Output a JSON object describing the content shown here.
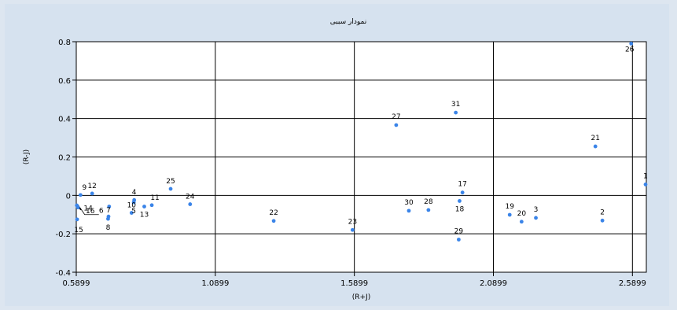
{
  "chart_data": {
    "type": "scatter",
    "title": "نمودار سببی",
    "xlabel": "(R+J)",
    "ylabel": "(R-J)",
    "xlim": [
      0.5899,
      2.6399
    ],
    "ylim": [
      -0.4,
      0.8
    ],
    "xticks": [
      0.5899,
      1.0899,
      1.5899,
      2.0899,
      2.5899
    ],
    "xtick_labels": [
      "0.5899",
      "1.0899",
      "1.5899",
      "2.0899",
      "2.5899"
    ],
    "yticks": [
      -0.4,
      -0.2,
      0,
      0.2,
      0.4,
      0.6,
      0.8
    ],
    "ytick_labels": [
      "-0.4",
      "-0.2",
      "0",
      "0.2",
      "0.4",
      "0.6",
      "0.8"
    ],
    "grid": true,
    "point_color": "#3a84e8",
    "points": [
      {
        "label": "1",
        "x": 2.6399,
        "y": 0.057
      },
      {
        "label": "2",
        "x": 2.4819,
        "y": -0.131
      },
      {
        "label": "3",
        "x": 2.2427,
        "y": -0.117
      },
      {
        "label": "4",
        "x": 0.7982,
        "y": -0.024
      },
      {
        "label": "5",
        "x": 0.7967,
        "y": -0.036
      },
      {
        "label": "6",
        "x": 0.7081,
        "y": -0.058
      },
      {
        "label": "7",
        "x": 0.7058,
        "y": -0.11
      },
      {
        "label": "8",
        "x": 0.7043,
        "y": -0.122
      },
      {
        "label": "9",
        "x": 0.605,
        "y": 0.002
      },
      {
        "label": "10",
        "x": 0.7887,
        "y": -0.091
      },
      {
        "label": "11",
        "x": 0.8615,
        "y": -0.051
      },
      {
        "label": "12",
        "x": 0.647,
        "y": 0.01
      },
      {
        "label": "13",
        "x": 0.8345,
        "y": -0.058
      },
      {
        "label": "14",
        "x": 0.596,
        "y": -0.063
      },
      {
        "label": "15",
        "x": 0.593,
        "y": -0.125
      },
      {
        "label": "16",
        "x": 0.592,
        "y": -0.052
      },
      {
        "label": "17",
        "x": 1.9787,
        "y": 0.015
      },
      {
        "label": "18",
        "x": 1.9682,
        "y": -0.029
      },
      {
        "label": "19",
        "x": 2.1485,
        "y": -0.101
      },
      {
        "label": "20",
        "x": 2.1913,
        "y": -0.137
      },
      {
        "label": "21",
        "x": 2.4567,
        "y": 0.255
      },
      {
        "label": "22",
        "x": 1.2999,
        "y": -0.133
      },
      {
        "label": "23",
        "x": 1.5834,
        "y": -0.18
      },
      {
        "label": "24",
        "x": 0.9993,
        "y": -0.046
      },
      {
        "label": "25",
        "x": 0.9293,
        "y": 0.034
      },
      {
        "label": "26",
        "x": 2.5854,
        "y": 0.79
      },
      {
        "label": "27",
        "x": 1.7404,
        "y": 0.366
      },
      {
        "label": "28",
        "x": 1.8563,
        "y": -0.076
      },
      {
        "label": "29",
        "x": 1.9652,
        "y": -0.23
      },
      {
        "label": "30",
        "x": 1.7859,
        "y": -0.08
      },
      {
        "label": "31",
        "x": 1.9546,
        "y": 0.431
      }
    ]
  }
}
